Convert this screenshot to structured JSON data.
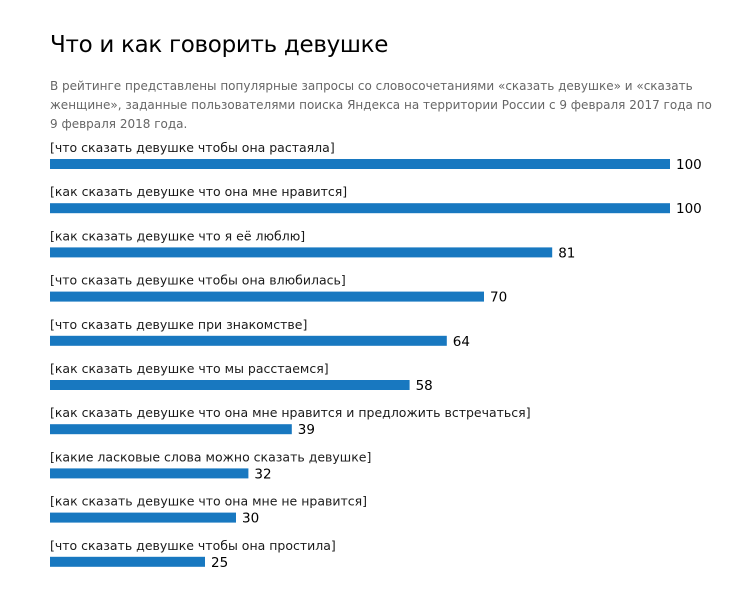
{
  "title": "Что и как говорить девушке",
  "subtitle": "В рейтинге представлены популярные запросы со словосочетаниями «сказать девушке» и «сказать женщине», заданные пользователями поиска Яндекса на территории России с 9 февраля 2017 года по 9 февраля 2018 года.",
  "colors": {
    "bar": "#1878c0"
  },
  "chart_data": {
    "type": "bar",
    "orientation": "horizontal",
    "categories": [
      "[что сказать девушке чтобы она растаяла]",
      "[как сказать девушке что она мне нравится]",
      "[как сказать девушке что я её люблю]",
      "[что сказать девушке чтобы она влюбилась]",
      "[что сказать девушке при знакомстве]",
      "[как сказать девушке что мы расстаемся]",
      "[как сказать девушке что она мне нравится и предложить встречаться]",
      "[какие ласковые слова можно сказать девушке]",
      "[как сказать девушке что она мне не нравится]",
      "[что сказать девушке чтобы она простила]"
    ],
    "values": [
      100,
      100,
      81,
      70,
      64,
      58,
      39,
      32,
      30,
      25
    ],
    "xlim": [
      0,
      100
    ],
    "grid": false,
    "legend": "none"
  }
}
